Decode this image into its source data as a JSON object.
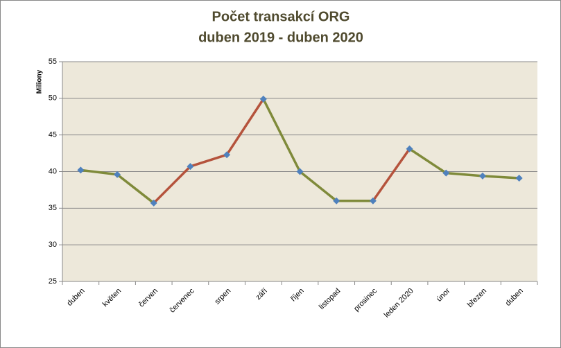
{
  "chart_data": {
    "type": "line",
    "title": "Počet transakcí ORG",
    "subtitle": "duben  2019 - duben 2020",
    "y_label": "Miliony",
    "categories": [
      "duben",
      "květen",
      "červen",
      "červenec",
      "srpen",
      "září",
      "říjen",
      "listopad",
      "prosinec",
      "leden 2020",
      "únor",
      "březen",
      "duben"
    ],
    "values": [
      40.2,
      39.6,
      35.7,
      40.7,
      42.3,
      49.9,
      40.0,
      36.0,
      36.0,
      43.1,
      39.8,
      39.4,
      39.1
    ],
    "marker_color": "#4f81bd",
    "rise_color": "#b5533c",
    "fall_color": "#7f8a3a",
    "ylim": [
      25,
      55
    ],
    "yticks": [
      25,
      30,
      35,
      40,
      45,
      50,
      55
    ],
    "grid": true
  }
}
